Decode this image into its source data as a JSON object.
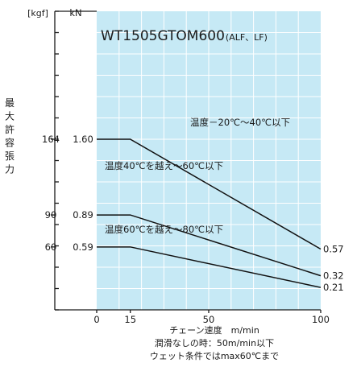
{
  "chart_data": {
    "type": "line",
    "title": "WT1505GTOM600",
    "title_suffix": "(ALF、LF)",
    "ylabel": "最大許容張力",
    "ylabel_unit_kgf": "[kgf]",
    "ylabel_unit_kn": "kN",
    "xlabel": "チェーン速度　m/min",
    "notes": [
      "潤滑なしの時：50m/min以下",
      "ウェット条件ではmax60℃まで"
    ],
    "xlim": [
      0,
      100
    ],
    "ylim": [
      0,
      2.8
    ],
    "x_ticks": [
      0,
      15,
      50,
      100
    ],
    "y_ticks": [
      {
        "kn": "1.60",
        "kgf": "164",
        "value": 1.6
      },
      {
        "kn": "0.89",
        "kgf": "90",
        "value": 0.89
      },
      {
        "kn": "0.59",
        "kgf": "60",
        "value": 0.59
      }
    ],
    "grid": true,
    "series": [
      {
        "name": "温度－20℃～40℃以下",
        "x": [
          0,
          15,
          100
        ],
        "y": [
          1.6,
          1.6,
          0.57
        ],
        "end_label": "0.57"
      },
      {
        "name": "温度40℃を越え～60℃以下",
        "x": [
          0,
          15,
          100
        ],
        "y": [
          0.89,
          0.89,
          0.32
        ],
        "end_label": "0.32"
      },
      {
        "name": "温度60℃を越え～80℃以下",
        "x": [
          0,
          15,
          100
        ],
        "y": [
          0.59,
          0.59,
          0.21
        ],
        "end_label": "0.21"
      }
    ],
    "colors": {
      "plot_background": "#c6e9f5",
      "grid": "#ffffff",
      "line": "#111111"
    }
  }
}
